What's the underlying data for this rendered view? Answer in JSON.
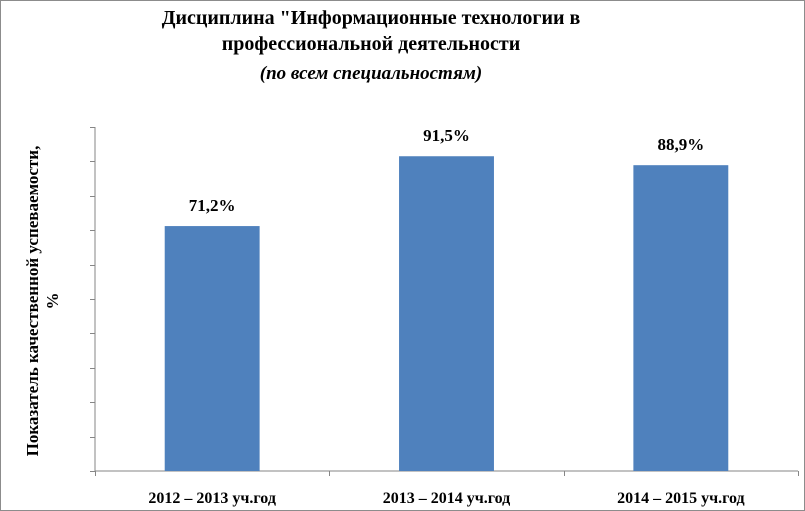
{
  "chart_data": {
    "type": "bar",
    "title_line1": "Дисциплина \"Информационные технологии в",
    "title_line2": "профессиональной деятельности",
    "subtitle": "(по всем специальностям)",
    "ylabel_line1": "Показатель качественной успеваемости,",
    "ylabel_line2": "%",
    "xlabel": "",
    "categories": [
      "2012 – 2013 уч.год",
      "2013 – 2014 уч.год",
      "2014 – 2015 уч.год"
    ],
    "values": [
      71.2,
      91.5,
      88.9
    ],
    "data_labels": [
      "71,2%",
      "91,5%",
      "88,9%"
    ],
    "ylim": [
      0,
      100
    ],
    "y_ticks_count": 10,
    "grid": false,
    "legend": "none",
    "bar_color": "#4F81BD"
  }
}
